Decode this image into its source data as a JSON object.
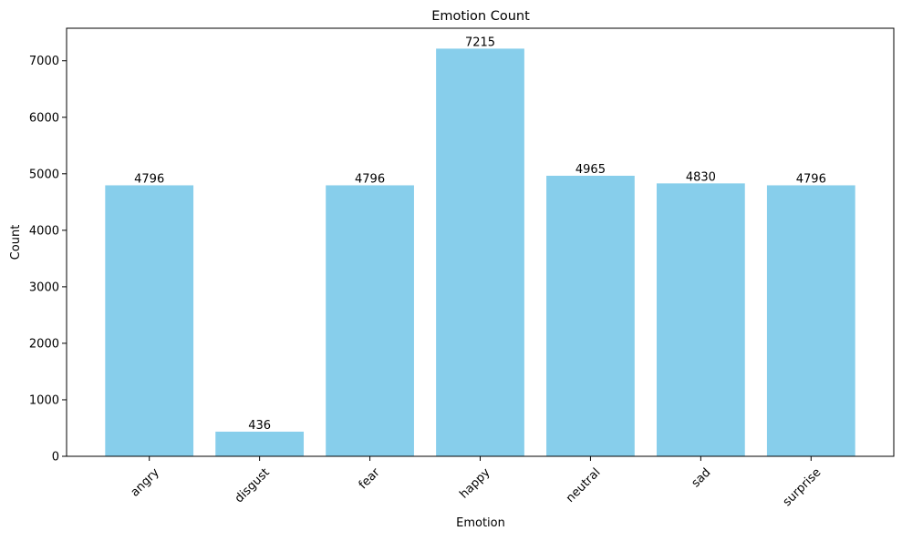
{
  "chart_data": {
    "type": "bar",
    "title": "Emotion Count",
    "xlabel": "Emotion",
    "ylabel": "Count",
    "categories": [
      "angry",
      "disgust",
      "fear",
      "happy",
      "neutral",
      "sad",
      "surprise"
    ],
    "values": [
      4796,
      436,
      4796,
      7215,
      4965,
      4830,
      4796
    ],
    "data_labels": [
      "4796",
      "436",
      "4796",
      "7215",
      "4965",
      "4830",
      "4796"
    ],
    "ylim": [
      0,
      7576
    ],
    "yticks": [
      0,
      1000,
      2000,
      3000,
      4000,
      5000,
      6000,
      7000
    ],
    "ytick_labels": [
      "0",
      "1000",
      "2000",
      "3000",
      "4000",
      "5000",
      "6000",
      "7000"
    ],
    "x_tick_rotation_deg": 45,
    "grid": false,
    "legend": "none",
    "bar_color": "#87ceeb",
    "axis_color": "#000000",
    "text_color": "#000000"
  }
}
